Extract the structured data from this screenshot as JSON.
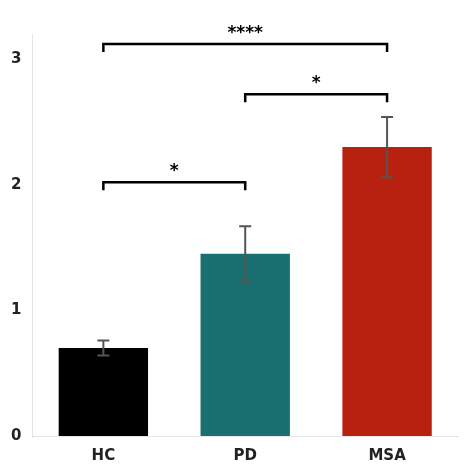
{
  "chart_data": {
    "type": "bar",
    "categories": [
      "HC",
      "PD",
      "MSA"
    ],
    "values": [
      0.7,
      1.45,
      2.3
    ],
    "errors": [
      0.06,
      0.22,
      0.24
    ],
    "colors": [
      "#000000",
      "#1a7070",
      "#b82010"
    ],
    "ylim": [
      0,
      3.2
    ],
    "yticks": [
      0,
      1,
      2,
      3
    ],
    "grid": false,
    "annotations": [
      {
        "x1": "HC",
        "x2": "PD",
        "y": 2.02,
        "label": "*"
      },
      {
        "x1": "PD",
        "x2": "MSA",
        "y": 2.72,
        "label": "*"
      },
      {
        "x1": "HC",
        "x2": "MSA",
        "y": 3.12,
        "label": "****"
      }
    ]
  }
}
